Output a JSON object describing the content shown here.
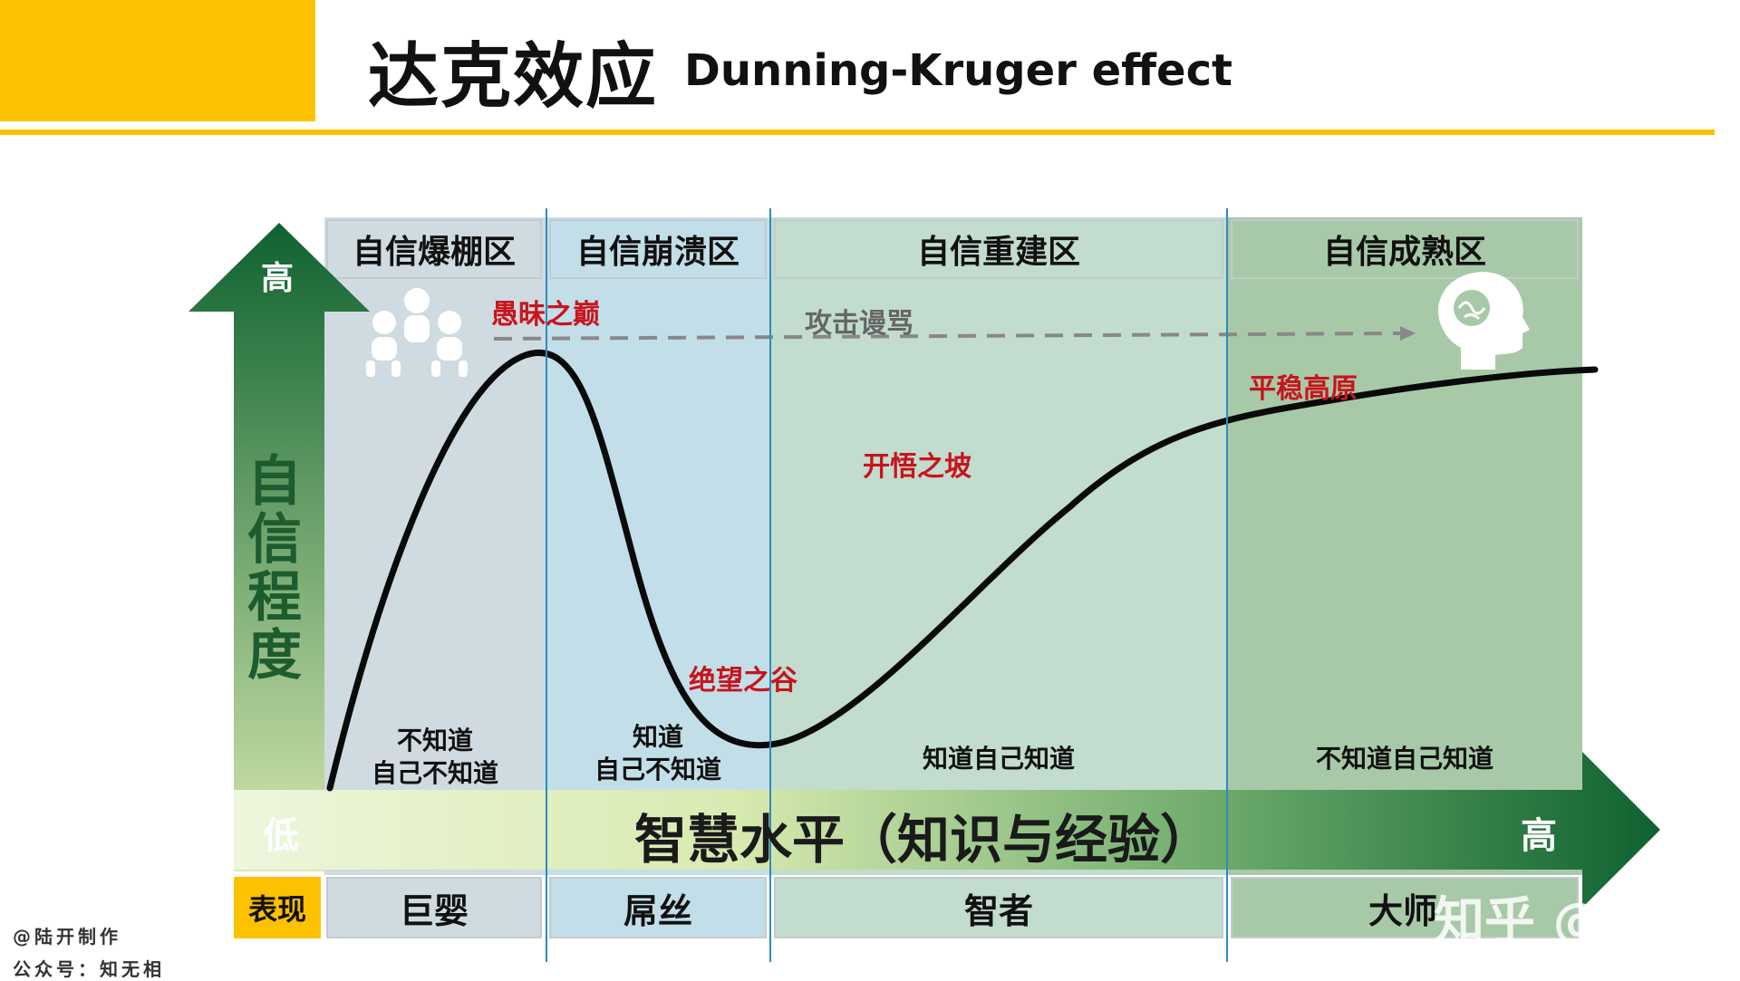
{
  "title": {
    "chinese": "达克效应",
    "english": "Dunning-Kruger effect"
  },
  "colors": {
    "accent_yellow": "#fcc200",
    "zone1": "#cfdbe0",
    "zone2": "#c2dfe9",
    "zone3": "#c2dcce",
    "zone4": "#a8c9a8",
    "arrow_dark_green": "#0e6230",
    "arrow_light_green": "#d8eab0",
    "label_red": "#c8141d",
    "divider_blue": "#2a8dbf"
  },
  "zones": [
    {
      "header": "自信爆棚区",
      "desc_line1": "不知道",
      "desc_line2": "自己不知道",
      "role": "巨婴"
    },
    {
      "header": "自信崩溃区",
      "desc_line1": "知道",
      "desc_line2": "自己不知道",
      "role": "屌丝"
    },
    {
      "header": "自信重建区",
      "desc_line1": "知道自己知道",
      "desc_line2": "",
      "role": "智者"
    },
    {
      "header": "自信成熟区",
      "desc_line1": "不知道自己知道",
      "desc_line2": "",
      "role": "大师"
    }
  ],
  "curve_labels": {
    "peak": "愚昧之巅",
    "valley": "绝望之谷",
    "slope": "开悟之坡",
    "plateau": "平稳高原"
  },
  "dashed_arrow_label": "攻击谩骂",
  "axes": {
    "y_label": "自信程度",
    "y_high": "高",
    "x_label": "智慧水平（知识与经验）",
    "x_low": "低",
    "x_high": "高"
  },
  "perf_label": "表现",
  "credits": {
    "line1": "@陆开制作",
    "line2": "公众号：知无相"
  },
  "watermark": "知乎 @陆开",
  "icons": {
    "zone1": "babies-icon",
    "zone4": "brain-head-icon"
  }
}
